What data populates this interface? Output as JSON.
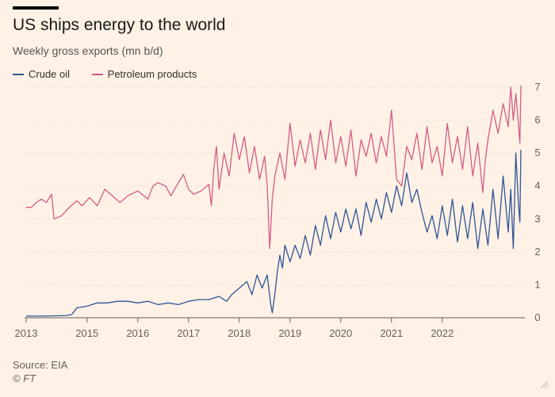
{
  "title": "US ships energy to the world",
  "subtitle": "Weekly gross exports (mn b/d)",
  "source": "Source: EIA",
  "credit": "© FT",
  "chart_data": {
    "type": "line",
    "title": "US ships energy to the world",
    "subtitle": "Weekly gross exports (mn b/d)",
    "xlabel": "",
    "ylabel": "",
    "x_ticks": [
      "2013",
      "2015",
      "2016",
      "2017",
      "2018",
      "2019",
      "2020",
      "2021",
      "2022"
    ],
    "x_tick_values": [
      2013.0,
      2014.2,
      2015.2,
      2016.2,
      2017.2,
      2018.2,
      2019.2,
      2020.2,
      2021.2
    ],
    "y_ticks": [
      "0",
      "1",
      "2",
      "3",
      "4",
      "5",
      "6",
      "7"
    ],
    "xlim": [
      2013.0,
      2022.75
    ],
    "ylim": [
      0,
      7
    ],
    "grid": "horizontal-dotted",
    "legend_position": "top-left",
    "colors": {
      "crude": "#2f5595",
      "products": "#d35c86",
      "axis": "#66605c",
      "grid": "#d8cdc2",
      "background": "#fff1e5"
    },
    "series": [
      {
        "name": "Crude oil",
        "color": "#2f5595",
        "points": [
          [
            2013.0,
            0.05
          ],
          [
            2013.3,
            0.05
          ],
          [
            2013.6,
            0.06
          ],
          [
            2013.8,
            0.07
          ],
          [
            2013.9,
            0.1
          ],
          [
            2014.0,
            0.3
          ],
          [
            2014.2,
            0.35
          ],
          [
            2014.4,
            0.45
          ],
          [
            2014.6,
            0.45
          ],
          [
            2014.8,
            0.5
          ],
          [
            2015.0,
            0.5
          ],
          [
            2015.2,
            0.45
          ],
          [
            2015.4,
            0.5
          ],
          [
            2015.6,
            0.4
          ],
          [
            2015.8,
            0.45
          ],
          [
            2016.0,
            0.4
          ],
          [
            2016.2,
            0.5
          ],
          [
            2016.4,
            0.55
          ],
          [
            2016.6,
            0.55
          ],
          [
            2016.8,
            0.65
          ],
          [
            2016.95,
            0.5
          ],
          [
            2017.05,
            0.7
          ],
          [
            2017.2,
            0.9
          ],
          [
            2017.35,
            1.1
          ],
          [
            2017.45,
            0.7
          ],
          [
            2017.55,
            1.3
          ],
          [
            2017.65,
            0.9
          ],
          [
            2017.75,
            1.3
          ],
          [
            2017.82,
            0.4
          ],
          [
            2017.85,
            0.15
          ],
          [
            2017.9,
            0.7
          ],
          [
            2017.95,
            1.4
          ],
          [
            2018.0,
            1.9
          ],
          [
            2018.05,
            1.5
          ],
          [
            2018.1,
            2.2
          ],
          [
            2018.2,
            1.7
          ],
          [
            2018.3,
            2.2
          ],
          [
            2018.4,
            1.8
          ],
          [
            2018.5,
            2.5
          ],
          [
            2018.6,
            1.9
          ],
          [
            2018.7,
            2.8
          ],
          [
            2018.8,
            2.2
          ],
          [
            2018.9,
            3.1
          ],
          [
            2019.0,
            2.4
          ],
          [
            2019.1,
            3.2
          ],
          [
            2019.2,
            2.6
          ],
          [
            2019.3,
            3.3
          ],
          [
            2019.4,
            2.7
          ],
          [
            2019.5,
            3.3
          ],
          [
            2019.6,
            2.5
          ],
          [
            2019.7,
            3.5
          ],
          [
            2019.8,
            2.9
          ],
          [
            2019.9,
            3.6
          ],
          [
            2020.0,
            3.0
          ],
          [
            2020.1,
            3.8
          ],
          [
            2020.2,
            3.2
          ],
          [
            2020.3,
            4.0
          ],
          [
            2020.4,
            3.4
          ],
          [
            2020.5,
            4.4
          ],
          [
            2020.6,
            3.5
          ],
          [
            2020.7,
            3.9
          ],
          [
            2020.8,
            3.2
          ],
          [
            2020.9,
            2.6
          ],
          [
            2021.0,
            3.1
          ],
          [
            2021.1,
            2.4
          ],
          [
            2021.2,
            3.4
          ],
          [
            2021.3,
            2.5
          ],
          [
            2021.4,
            3.6
          ],
          [
            2021.5,
            2.3
          ],
          [
            2021.6,
            3.4
          ],
          [
            2021.7,
            2.4
          ],
          [
            2021.8,
            3.5
          ],
          [
            2021.9,
            2.1
          ],
          [
            2022.0,
            3.3
          ],
          [
            2022.1,
            2.2
          ],
          [
            2022.2,
            3.9
          ],
          [
            2022.3,
            2.4
          ],
          [
            2022.4,
            4.3
          ],
          [
            2022.5,
            2.6
          ],
          [
            2022.55,
            3.9
          ],
          [
            2022.6,
            2.1
          ],
          [
            2022.65,
            5.0
          ],
          [
            2022.7,
            3.5
          ],
          [
            2022.73,
            2.9
          ],
          [
            2022.75,
            5.1
          ]
        ]
      },
      {
        "name": "Petroleum products",
        "color": "#d35c86",
        "points": [
          [
            2013.0,
            3.35
          ],
          [
            2013.1,
            3.35
          ],
          [
            2013.2,
            3.5
          ],
          [
            2013.3,
            3.6
          ],
          [
            2013.4,
            3.5
          ],
          [
            2013.5,
            3.75
          ],
          [
            2013.55,
            3.0
          ],
          [
            2013.7,
            3.1
          ],
          [
            2013.85,
            3.35
          ],
          [
            2014.0,
            3.55
          ],
          [
            2014.1,
            3.4
          ],
          [
            2014.25,
            3.65
          ],
          [
            2014.4,
            3.4
          ],
          [
            2014.55,
            3.9
          ],
          [
            2014.7,
            3.7
          ],
          [
            2014.85,
            3.5
          ],
          [
            2015.0,
            3.7
          ],
          [
            2015.2,
            3.85
          ],
          [
            2015.4,
            3.6
          ],
          [
            2015.5,
            4.0
          ],
          [
            2015.6,
            4.1
          ],
          [
            2015.75,
            4.0
          ],
          [
            2015.85,
            3.7
          ],
          [
            2016.0,
            4.1
          ],
          [
            2016.1,
            4.35
          ],
          [
            2016.2,
            3.9
          ],
          [
            2016.3,
            3.75
          ],
          [
            2016.45,
            3.85
          ],
          [
            2016.6,
            4.05
          ],
          [
            2016.65,
            3.4
          ],
          [
            2016.7,
            4.55
          ],
          [
            2016.75,
            5.2
          ],
          [
            2016.8,
            3.9
          ],
          [
            2016.9,
            5.0
          ],
          [
            2017.0,
            4.3
          ],
          [
            2017.1,
            5.6
          ],
          [
            2017.2,
            4.8
          ],
          [
            2017.3,
            5.5
          ],
          [
            2017.4,
            4.4
          ],
          [
            2017.5,
            5.2
          ],
          [
            2017.6,
            4.2
          ],
          [
            2017.7,
            4.9
          ],
          [
            2017.75,
            4.0
          ],
          [
            2017.8,
            2.1
          ],
          [
            2017.85,
            3.6
          ],
          [
            2017.9,
            4.3
          ],
          [
            2018.0,
            5.0
          ],
          [
            2018.1,
            4.2
          ],
          [
            2018.2,
            5.9
          ],
          [
            2018.3,
            4.6
          ],
          [
            2018.4,
            5.4
          ],
          [
            2018.5,
            4.7
          ],
          [
            2018.6,
            5.6
          ],
          [
            2018.7,
            4.5
          ],
          [
            2018.8,
            5.7
          ],
          [
            2018.9,
            4.8
          ],
          [
            2019.0,
            6.0
          ],
          [
            2019.1,
            4.7
          ],
          [
            2019.2,
            5.5
          ],
          [
            2019.3,
            4.6
          ],
          [
            2019.4,
            5.7
          ],
          [
            2019.5,
            4.3
          ],
          [
            2019.6,
            5.4
          ],
          [
            2019.7,
            4.9
          ],
          [
            2019.8,
            5.6
          ],
          [
            2019.9,
            4.7
          ],
          [
            2020.0,
            5.5
          ],
          [
            2020.1,
            4.9
          ],
          [
            2020.2,
            6.3
          ],
          [
            2020.3,
            4.2
          ],
          [
            2020.4,
            4.0
          ],
          [
            2020.5,
            5.2
          ],
          [
            2020.6,
            4.8
          ],
          [
            2020.7,
            5.6
          ],
          [
            2020.8,
            4.5
          ],
          [
            2020.9,
            5.8
          ],
          [
            2021.0,
            4.7
          ],
          [
            2021.1,
            5.2
          ],
          [
            2021.2,
            4.3
          ],
          [
            2021.3,
            5.9
          ],
          [
            2021.4,
            4.7
          ],
          [
            2021.5,
            5.5
          ],
          [
            2021.6,
            4.5
          ],
          [
            2021.7,
            5.8
          ],
          [
            2021.8,
            4.3
          ],
          [
            2021.9,
            5.3
          ],
          [
            2022.0,
            3.8
          ],
          [
            2022.05,
            4.8
          ],
          [
            2022.1,
            5.4
          ],
          [
            2022.2,
            6.3
          ],
          [
            2022.3,
            5.6
          ],
          [
            2022.4,
            6.5
          ],
          [
            2022.5,
            5.8
          ],
          [
            2022.55,
            7.0
          ],
          [
            2022.6,
            6.0
          ],
          [
            2022.65,
            6.8
          ],
          [
            2022.7,
            5.9
          ],
          [
            2022.73,
            5.3
          ],
          [
            2022.75,
            7.05
          ]
        ]
      }
    ]
  }
}
